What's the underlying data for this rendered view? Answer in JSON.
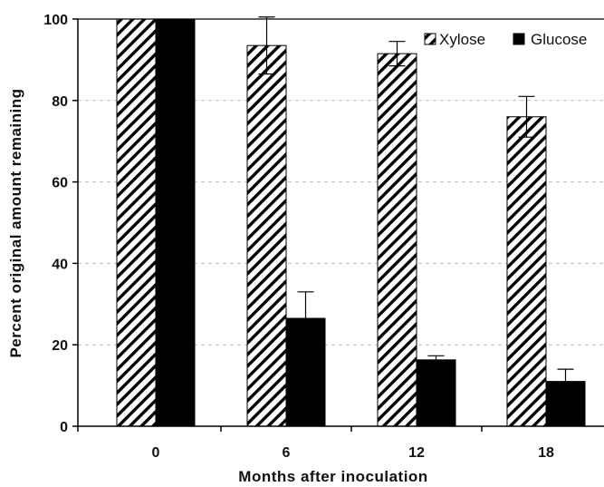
{
  "chart_data": {
    "type": "bar",
    "title": "",
    "xlabel": "Months after inoculation",
    "ylabel": "Percent original amount remaining",
    "categories": [
      "0",
      "6",
      "12",
      "18"
    ],
    "ylim": [
      0,
      100
    ],
    "yticks": [
      "0",
      "20",
      "40",
      "60",
      "80",
      "100"
    ],
    "grid": "dashed horizontal",
    "legend_position": "top-right",
    "series": [
      {
        "name": "Xylose",
        "values": [
          100,
          93.5,
          91.5,
          76
        ],
        "errors": [
          0,
          7,
          3,
          5
        ],
        "fill": "hatched",
        "color": "#000000"
      },
      {
        "name": "Glucose",
        "values": [
          100,
          26.5,
          16.3,
          11
        ],
        "errors": [
          0,
          6.5,
          1,
          3
        ],
        "fill": "solid",
        "color": "#000000"
      }
    ]
  }
}
